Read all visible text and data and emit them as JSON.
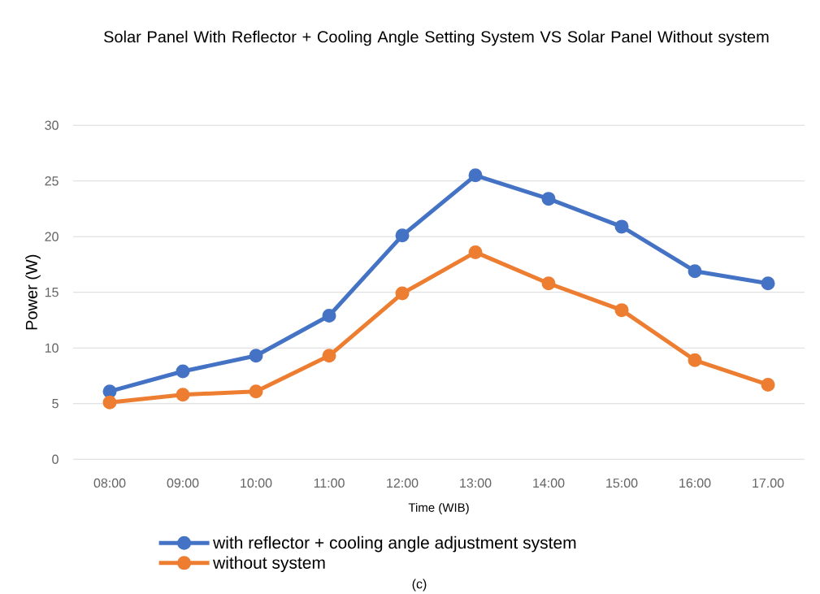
{
  "chart_data": {
    "type": "line",
    "title": "Solar Panel With Reflector + Cooling Angle Setting System VS Solar Panel Without system",
    "xlabel": "Time (WIB)",
    "ylabel": "Power (W)",
    "categories": [
      "08:00",
      "09:00",
      "10:00",
      "11:00",
      "12:00",
      "13:00",
      "14:00",
      "15:00",
      "16:00",
      "17.00"
    ],
    "series": [
      {
        "name": "with reflector + cooling angle adjustment system",
        "color": "#4472c4",
        "values": [
          6.1,
          7.9,
          9.3,
          12.9,
          20.1,
          25.5,
          23.4,
          20.9,
          16.9,
          15.8
        ]
      },
      {
        "name": "without system",
        "color": "#ed7d31",
        "values": [
          5.1,
          5.8,
          6.1,
          9.3,
          14.9,
          18.6,
          15.8,
          13.4,
          8.9,
          6.7
        ]
      }
    ],
    "ylim": [
      0,
      30
    ],
    "yticks": [
      0,
      5,
      10,
      15,
      20,
      25,
      30
    ],
    "grid": "y",
    "legend": "bottom",
    "marker": "circle",
    "line_style": "solid",
    "annotations": [
      "(c)"
    ]
  }
}
